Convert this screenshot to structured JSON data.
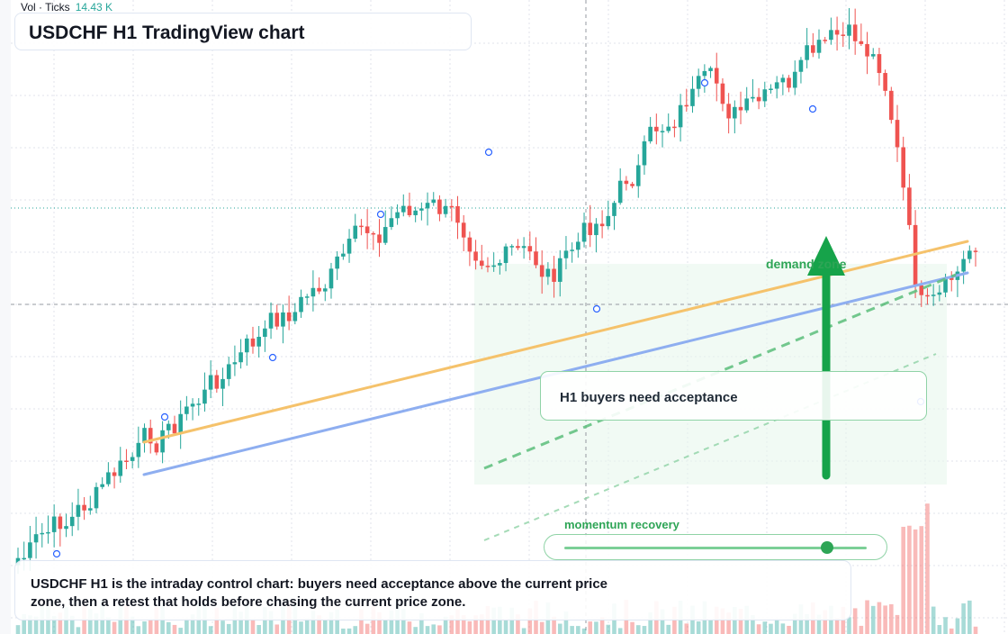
{
  "header": {
    "vol_label": "Vol · Ticks",
    "vol_value": "14.43 K",
    "title": "USDCHF H1 TradingView chart"
  },
  "annotations": {
    "callout": "H1 buyers need acceptance",
    "zone": "demand zone",
    "momentum_label": "momentum recovery",
    "momentum_level": 0.87,
    "footer": "USDCHF H1 is the intraday control chart: buyers need acceptance above the current price zone, then a retest that holds before chasing the current price zone."
  },
  "colors": {
    "bull": "#26a69a",
    "bear": "#ef5350",
    "trend_orange": "#f5c26b",
    "trend_blue": "#8eaef0",
    "zone_green": "#2ea556",
    "grid": "#e0e3eb"
  },
  "chart_data": {
    "type": "candlestick",
    "symbol": "USDCHF",
    "timeframe": "H1",
    "seed": 7,
    "candle_count": 160,
    "series": "generated intraday OHLC with volume, upward drift, sharp selloff and recovery at end"
  }
}
